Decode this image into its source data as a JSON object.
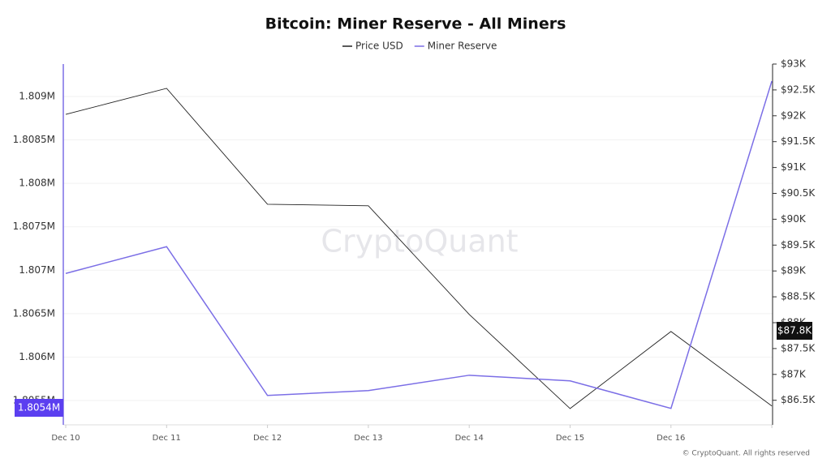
{
  "chart_data": {
    "type": "line",
    "title": "Bitcoin: Miner Reserve - All Miners",
    "watermark": "CryptoQuant",
    "footer": "© CryptoQuant. All rights reserved",
    "annotations": [
      "1.8054M",
      "$87.8K"
    ],
    "categories": [
      "Dec 10",
      "Dec 11",
      "Dec 12",
      "Dec 13",
      "Dec 14",
      "Dec 15",
      "Dec 16",
      null
    ],
    "series": [
      {
        "name": "Price USD",
        "color": "#222222",
        "axis": "y2",
        "values": [
          92028,
          92530,
          90290,
          90260,
          88160,
          86340,
          87830,
          86390
        ]
      },
      {
        "name": "Miner Reserve",
        "color": "#7b6ee6",
        "values": [
          1806963,
          1807271,
          1805558,
          1805614,
          1805791,
          1805726,
          1805409,
          1809177
        ]
      }
    ],
    "ylim": [
      1805220,
      1809373
    ],
    "yticks": [
      {
        "value": 1805500,
        "label": "1.8055M"
      },
      {
        "value": 1806000,
        "label": "1.806M"
      },
      {
        "value": 1806500,
        "label": "1.8065M"
      },
      {
        "value": 1807000,
        "label": "1.807M"
      },
      {
        "value": 1807500,
        "label": "1.8075M"
      },
      {
        "value": 1808000,
        "label": "1.808M"
      },
      {
        "value": 1808500,
        "label": "1.8085M"
      },
      {
        "value": 1809000,
        "label": "1.809M"
      }
    ],
    "y2lim": [
      86025,
      93000
    ],
    "y2ticks": [
      {
        "value": 86500,
        "label": "$86.5K"
      },
      {
        "value": 87000,
        "label": "$87K"
      },
      {
        "value": 87500,
        "label": "$87.5K"
      },
      {
        "value": 88000,
        "label": "$88K"
      },
      {
        "value": 88500,
        "label": "$88.5K"
      },
      {
        "value": 89000,
        "label": "$89K"
      },
      {
        "value": 89500,
        "label": "$89.5K"
      },
      {
        "value": 90000,
        "label": "$90K"
      },
      {
        "value": 90500,
        "label": "$90.5K"
      },
      {
        "value": 91000,
        "label": "$91K"
      },
      {
        "value": 91500,
        "label": "$91.5K"
      },
      {
        "value": 92000,
        "label": "$92K"
      },
      {
        "value": 92500,
        "label": "$92.5K"
      },
      {
        "value": 93000,
        "label": "$93K"
      }
    ],
    "grid": true
  }
}
